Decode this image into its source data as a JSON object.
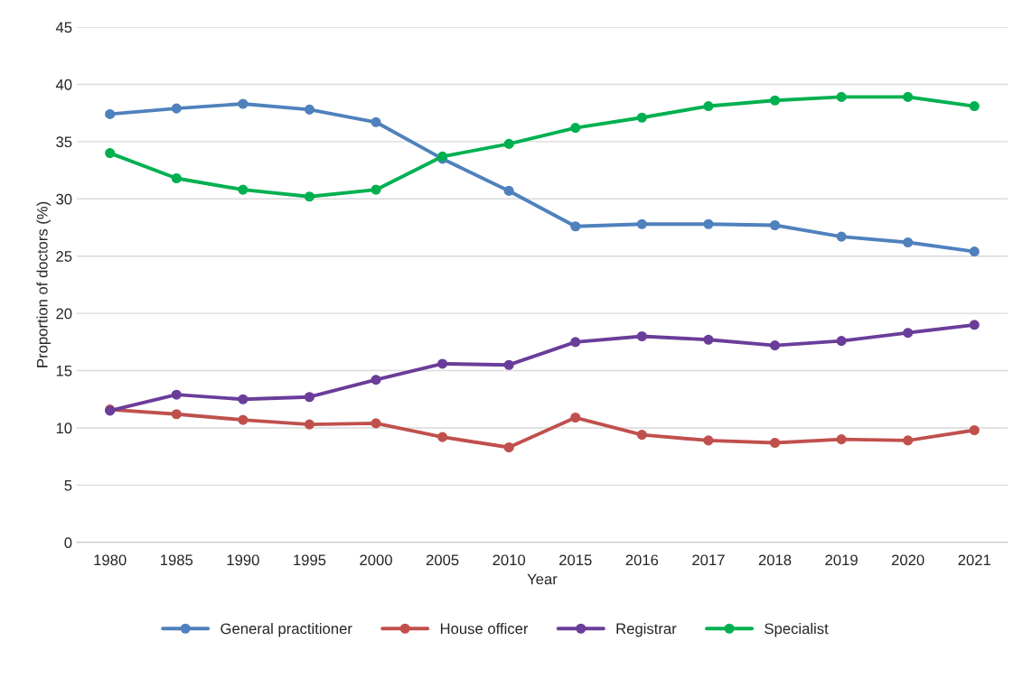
{
  "chart_data": {
    "type": "line",
    "xlabel": "Year",
    "ylabel": "Proportion of doctors (%)",
    "categories": [
      "1980",
      "1985",
      "1990",
      "1995",
      "2000",
      "2005",
      "2010",
      "2015",
      "2016",
      "2017",
      "2018",
      "2019",
      "2020",
      "2021"
    ],
    "series": [
      {
        "name": "General practitioner",
        "color": "#4f81bd",
        "values": [
          37.4,
          37.9,
          38.3,
          37.8,
          36.7,
          33.5,
          30.7,
          27.6,
          27.8,
          27.8,
          27.7,
          26.7,
          26.2,
          25.4
        ]
      },
      {
        "name": "House officer",
        "color": "#c0504d",
        "values": [
          11.6,
          11.2,
          10.7,
          10.3,
          10.4,
          9.2,
          8.3,
          10.9,
          9.4,
          8.9,
          8.7,
          9.0,
          8.9,
          9.8
        ]
      },
      {
        "name": "Registrar",
        "color": "#6a3d9a",
        "values": [
          11.5,
          12.9,
          12.5,
          12.7,
          14.2,
          15.6,
          15.5,
          17.5,
          18.0,
          17.7,
          17.2,
          17.6,
          18.3,
          19.0
        ]
      },
      {
        "name": "Specialist",
        "color": "#00b050",
        "values": [
          34.0,
          31.8,
          30.8,
          30.2,
          30.8,
          33.7,
          34.8,
          36.2,
          37.1,
          38.1,
          38.6,
          38.9,
          38.9,
          38.1
        ]
      }
    ],
    "ylim": [
      0,
      45
    ],
    "yticks": [
      0,
      5,
      10,
      15,
      20,
      25,
      30,
      35,
      40,
      45
    ],
    "grid": "y",
    "legend": "bottom",
    "marker": "circle",
    "line_style": "solid"
  }
}
